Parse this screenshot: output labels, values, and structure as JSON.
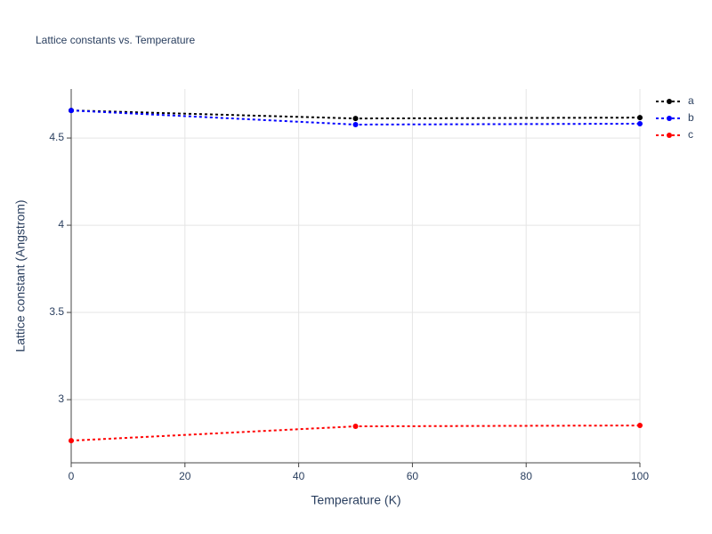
{
  "chart_data": {
    "type": "line",
    "title": "Lattice constants vs. Temperature",
    "x_label": "Temperature (K)",
    "y_label": "Lattice constant (Angstrom)",
    "x": [
      0,
      50,
      100
    ],
    "series": [
      {
        "name": "a",
        "color": "#000000",
        "values": [
          4.658,
          4.612,
          4.617
        ]
      },
      {
        "name": "b",
        "color": "#0000ff",
        "values": [
          4.658,
          4.577,
          4.582
        ]
      },
      {
        "name": "c",
        "color": "#ff0000",
        "values": [
          2.765,
          2.847,
          2.852
        ]
      }
    ],
    "xlim": [
      0,
      100
    ],
    "xticks": [
      0,
      20,
      40,
      60,
      80,
      100
    ],
    "ylim": [
      2.638,
      4.781
    ],
    "yticks": [
      3,
      3.5,
      4,
      4.5
    ],
    "grid": true,
    "line_style": "dotted",
    "legend": "right"
  }
}
